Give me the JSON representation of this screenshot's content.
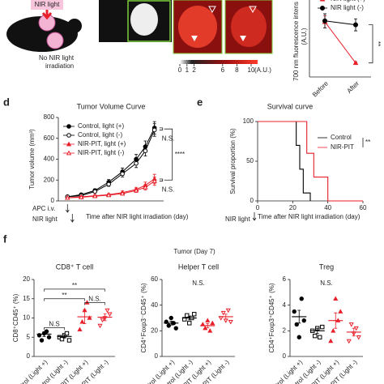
{
  "figure": {
    "panel_labels": {
      "d": "d",
      "e": "e",
      "f": "f"
    },
    "schematic": {
      "light": "NIR light",
      "no_light": [
        "No NIR light",
        "irradiation"
      ]
    },
    "colorbar": {
      "ticks": [
        0,
        1,
        2,
        6,
        8,
        10
      ],
      "unit": "(A.U.)"
    },
    "group_title": "Tumor (Day 7)"
  },
  "chart_data": [
    {
      "type": "line",
      "ylabel": [
        "700 nm fluorescence intens",
        "(A.U.)"
      ],
      "categories": [
        "Before",
        "After"
      ],
      "ylim": [
        0,
        8
      ],
      "series": [
        {
          "name": "NIR light (+)",
          "color": "#e8202a",
          "marker": "triangle",
          "values": [
            5.5,
            1.4
          ],
          "errors": [
            0.6,
            0.1
          ]
        },
        {
          "name": "NIR light (-)",
          "color": "#000000",
          "marker": "circle",
          "values": [
            5.6,
            5.2
          ],
          "errors": [
            0.7,
            0.6
          ]
        }
      ],
      "annotations": [
        "**"
      ]
    },
    {
      "type": "line",
      "title": "Tumor Volume Curve",
      "xlabel": "Time after NIR light irradiation (day)",
      "ylabel": "Tumor volume (mm³)",
      "x": [
        -1,
        2,
        5,
        8,
        11,
        14,
        16,
        18
      ],
      "xlim": [
        -3,
        20
      ],
      "ylim": [
        0,
        800
      ],
      "yticks": [
        0,
        200,
        400,
        600,
        800
      ],
      "series": [
        {
          "name": "Control, light (+)",
          "color": "#000000",
          "marker": "circle",
          "values": [
            40,
            60,
            100,
            180,
            280,
            400,
            520,
            700
          ],
          "errors": [
            5,
            10,
            15,
            25,
            35,
            45,
            55,
            60
          ]
        },
        {
          "name": "Control, light (-)",
          "color": "#000000",
          "marker": "circle-open",
          "values": [
            40,
            50,
            90,
            160,
            260,
            360,
            480,
            680
          ],
          "errors": [
            5,
            8,
            12,
            20,
            30,
            40,
            50,
            60
          ]
        },
        {
          "name": "NIR-PIT, light (+)",
          "color": "#e8202a",
          "marker": "triangle",
          "values": [
            30,
            40,
            50,
            60,
            80,
            110,
            150,
            210
          ],
          "errors": [
            5,
            6,
            8,
            10,
            15,
            20,
            30,
            45
          ]
        },
        {
          "name": "NIR-PIT, light (-)",
          "color": "#e8202a",
          "marker": "triangle-open",
          "values": [
            30,
            35,
            45,
            55,
            70,
            100,
            130,
            190
          ],
          "errors": [
            5,
            6,
            8,
            10,
            12,
            18,
            25,
            40
          ]
        }
      ],
      "annotations": [
        "N.S.",
        "****",
        "N.S."
      ],
      "events": [
        "APC i.v.",
        "NIR light"
      ]
    },
    {
      "type": "line",
      "step": true,
      "title": "Survival curve",
      "xlabel": "Time after NIR light irradiation (day)",
      "ylabel": "Survival proportion (%)",
      "xlim": [
        0,
        60
      ],
      "xticks": [
        0,
        20,
        40,
        60
      ],
      "ylim": [
        0,
        100
      ],
      "yticks": [
        0,
        50,
        100
      ],
      "series": [
        {
          "name": "Control",
          "color": "#000000",
          "x": [
            0,
            20,
            22,
            24,
            26,
            30
          ],
          "values": [
            100,
            100,
            70,
            40,
            10,
            0
          ]
        },
        {
          "name": "NIR-PIT",
          "color": "#e8202a",
          "x": [
            0,
            25,
            28,
            32,
            40,
            60
          ],
          "values": [
            100,
            100,
            60,
            30,
            0,
            0
          ]
        }
      ],
      "annotations": [
        "**"
      ],
      "events": [
        "NIR light"
      ]
    },
    {
      "type": "dot",
      "title": "CD8⁺ T cell",
      "ylabel": "CD8⁺CD45⁺ (%)",
      "ylim": [
        0,
        20
      ],
      "yticks": [
        0,
        5,
        10,
        15,
        20
      ],
      "categories": [
        "Control (Light +)",
        "Control (Light -)",
        "NIR-PIT (Light +)",
        "NIR-PIT (Light -)"
      ],
      "colors": [
        "#000000",
        "#000000",
        "#e8202a",
        "#e8202a"
      ],
      "markers": [
        "circle",
        "square-open",
        "triangle",
        "triangle-down-open"
      ],
      "points": [
        [
          5.5,
          4.2,
          6,
          6.5,
          5
        ],
        [
          5,
          4.5,
          5.5,
          6,
          4.2
        ],
        [
          7,
          9,
          12,
          14,
          10
        ],
        [
          8,
          9.5,
          10,
          12,
          11
        ]
      ],
      "values": [
        5.8,
        5.2,
        10.3,
        10.2
      ],
      "errors": [
        0.6,
        0.4,
        1.8,
        0.9
      ],
      "annotations": [
        "N.S",
        "**",
        "**",
        "N.S."
      ]
    },
    {
      "type": "dot",
      "title": "Helper T cell",
      "ylabel": "CD4⁺Foxp3⁻CD45⁺ (%)",
      "ylim": [
        0,
        60
      ],
      "yticks": [
        0,
        20,
        40,
        60
      ],
      "categories": [
        "Control (Light +)",
        "Control (Light -)",
        "NIR-PIT (Light +)",
        "NIR-PIT (Light -)"
      ],
      "colors": [
        "#000000",
        "#000000",
        "#e8202a",
        "#e8202a"
      ],
      "markers": [
        "circle",
        "square-open",
        "triangle",
        "triangle-down-open"
      ],
      "points": [
        [
          27,
          24,
          30,
          26,
          22
        ],
        [
          29,
          32,
          26,
          30,
          33
        ],
        [
          25,
          22,
          28,
          20,
          26
        ],
        [
          30,
          34,
          28,
          36,
          27
        ]
      ],
      "values": [
        26,
        30,
        24,
        31
      ],
      "errors": [
        1.5,
        1.5,
        1.7,
        2
      ],
      "annotations": [
        "N.S."
      ]
    },
    {
      "type": "dot",
      "title": "Treg",
      "ylabel": "CD4⁺Foxp3⁺CD45⁺ (%)",
      "ylim": [
        0,
        6
      ],
      "yticks": [
        0,
        2,
        4,
        6
      ],
      "categories": [
        "Control (Light +)",
        "Control (Light -)",
        "NIR-PIT (Light +)",
        "NIR-PIT (Light -)"
      ],
      "colors": [
        "#000000",
        "#000000",
        "#e8202a",
        "#e8202a"
      ],
      "markers": [
        "circle",
        "square-open",
        "triangle",
        "triangle-down-open"
      ],
      "points": [
        [
          3.5,
          2.5,
          1.5,
          4.5,
          2.8
        ],
        [
          2,
          1.6,
          2.2,
          1.5,
          2.3
        ],
        [
          1.2,
          2,
          4.5,
          2.8,
          3.5
        ],
        [
          1.2,
          2.5,
          1.8,
          2.2,
          1.5
        ]
      ],
      "values": [
        3.1,
        2,
        2.8,
        1.9
      ],
      "errors": [
        0.5,
        0.2,
        0.6,
        0.3
      ],
      "annotations": [
        "N.S."
      ]
    }
  ]
}
